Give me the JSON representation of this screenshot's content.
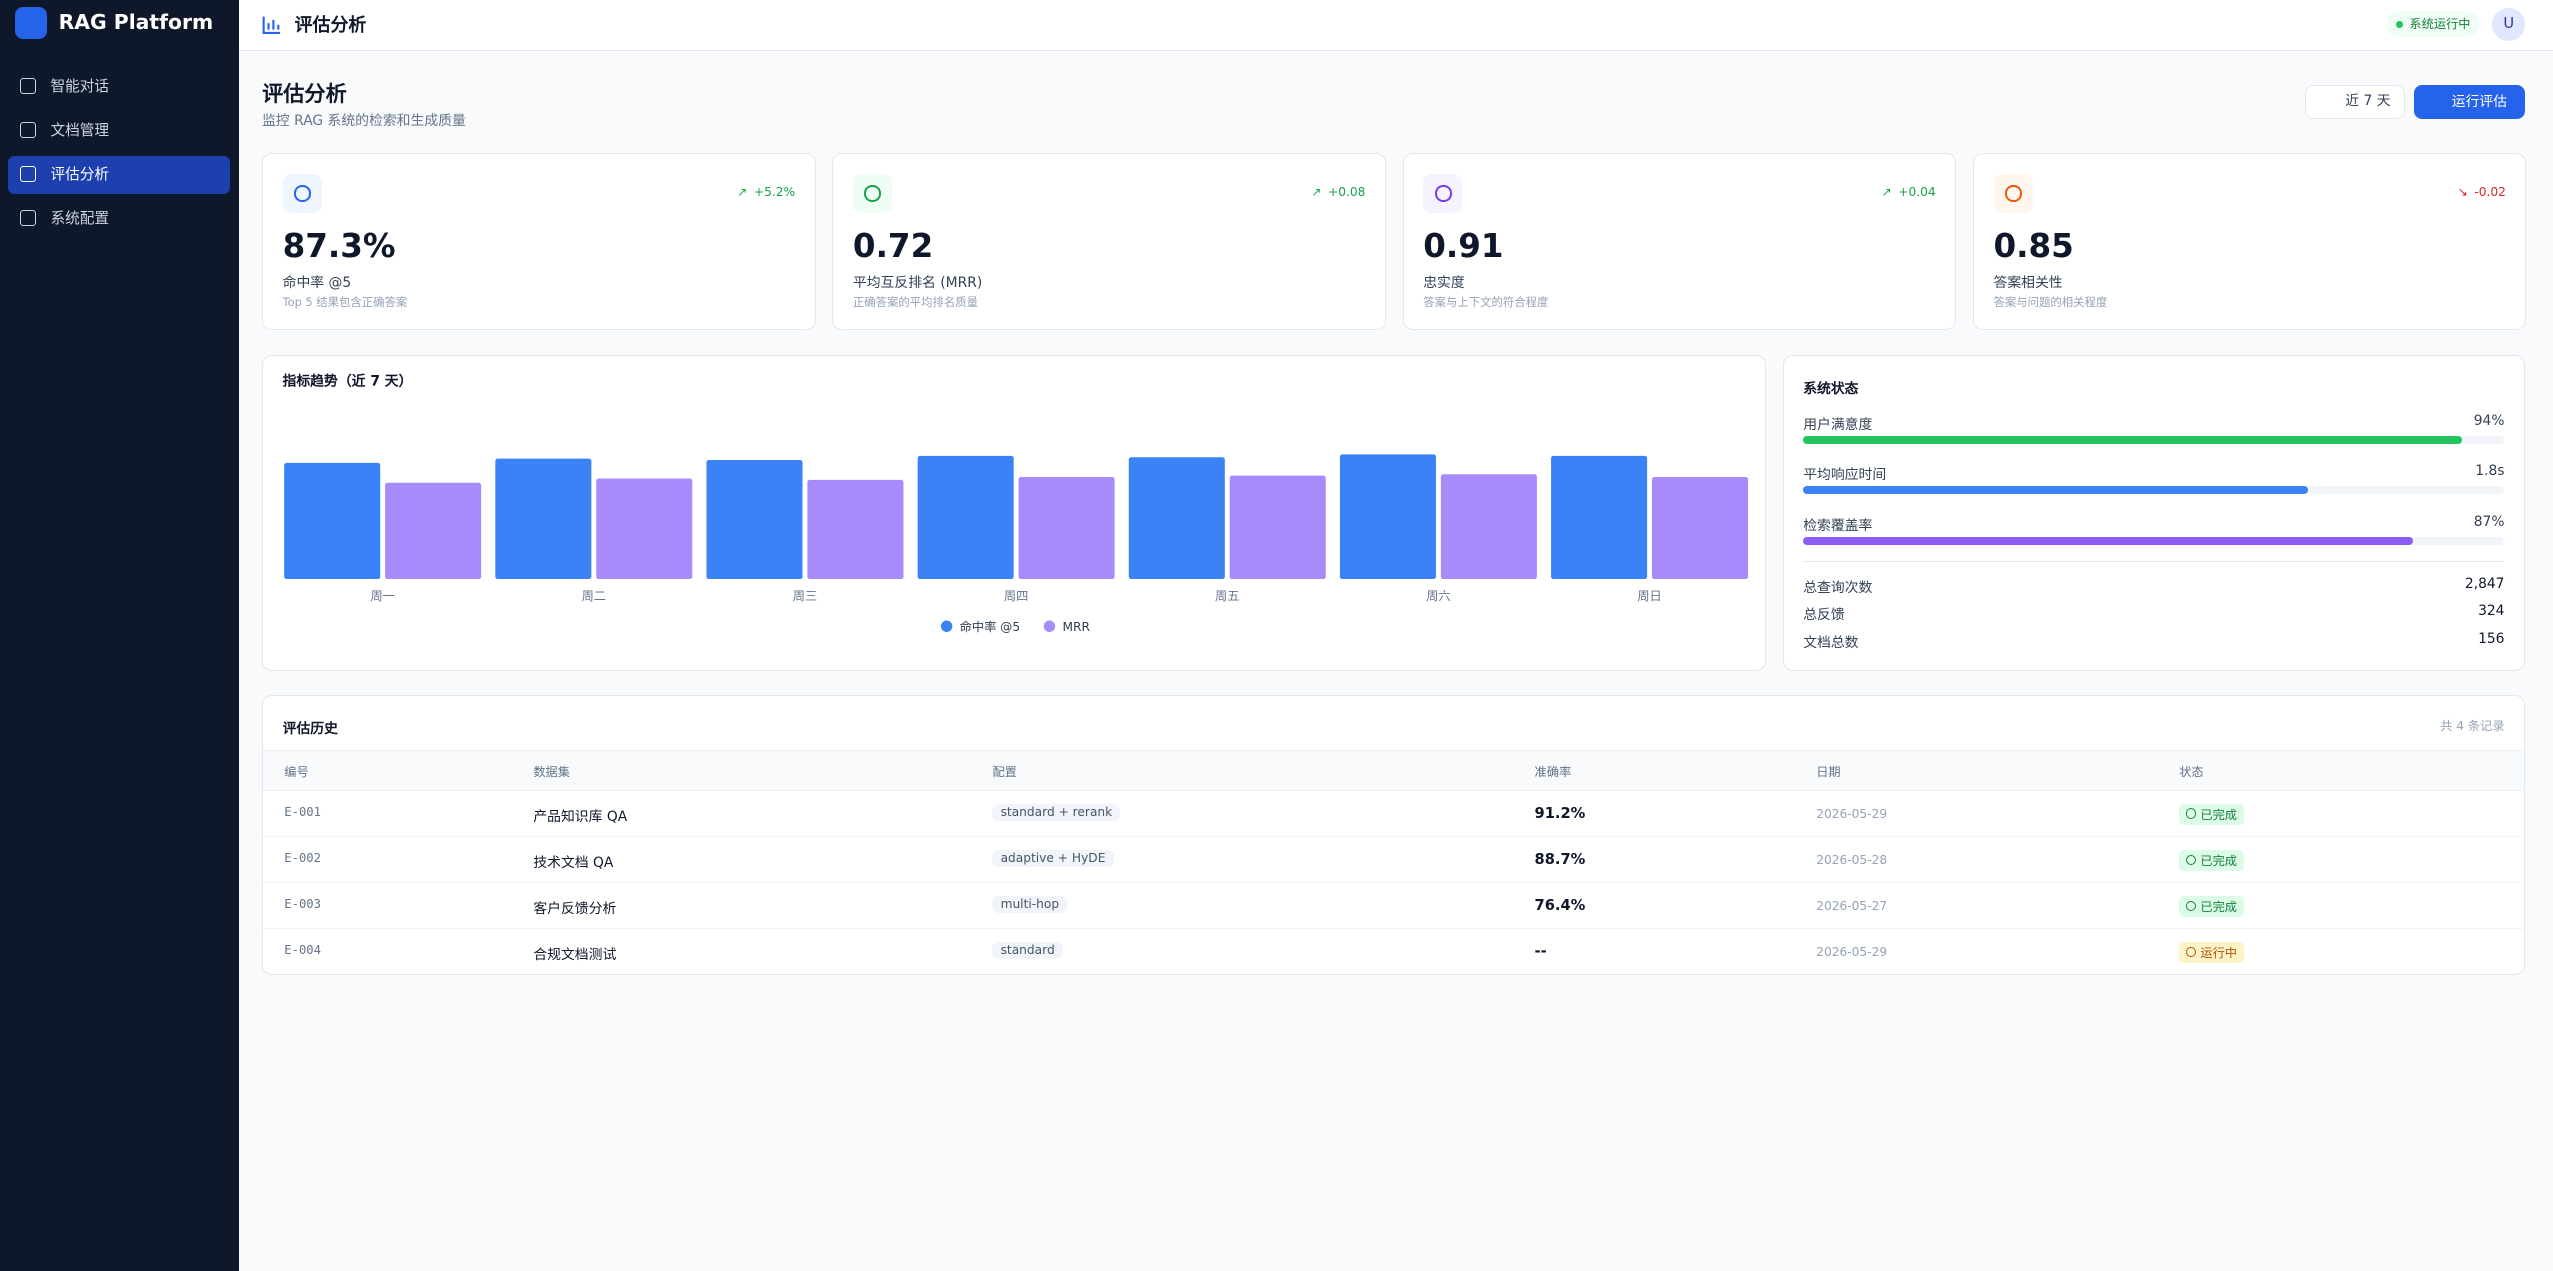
{
  "sidebar": {
    "brand": "RAG Platform",
    "nav": [
      "智能对话",
      "文档管理",
      "评估分析",
      "系统配置"
    ],
    "active": 2
  },
  "topbar": {
    "title": "评估分析",
    "status": "系统运行中",
    "avatar": "U"
  },
  "header": {
    "title": "评估分析",
    "subtitle": "监控 RAG 系统的检索和生成质量",
    "range_button": "近 7 天",
    "run_button": "运行评估"
  },
  "kpis": [
    {
      "value": "87.3%",
      "label": "命中率 @5",
      "desc": "Top 5 结果包含正确答案",
      "delta": "+5.2%",
      "trend": "up"
    },
    {
      "value": "0.72",
      "label": "平均互反排名 (MRR)",
      "desc": "正确答案的平均排名质量",
      "delta": "+0.08",
      "trend": "up"
    },
    {
      "value": "0.91",
      "label": "忠实度",
      "desc": "答案与上下文的符合程度",
      "delta": "+0.04",
      "trend": "up"
    },
    {
      "value": "0.85",
      "label": "答案相关性",
      "desc": "答案与问题的相关程度",
      "delta": "-0.02",
      "trend": "down"
    }
  ],
  "chart_data": {
    "type": "bar",
    "title": "指标趋势（近 7 天）",
    "categories": [
      "周一",
      "周二",
      "周三",
      "周四",
      "周五",
      "周六",
      "周日"
    ],
    "series": [
      {
        "name": "命中率 @5",
        "color": "#3b82f6",
        "values": [
          0.82,
          0.85,
          0.84,
          0.87,
          0.86,
          0.88,
          0.87
        ]
      },
      {
        "name": "MRR",
        "color": "#a78bfa",
        "values": [
          0.68,
          0.71,
          0.7,
          0.72,
          0.73,
          0.74,
          0.72
        ]
      }
    ],
    "ylim": [
      0,
      1
    ],
    "legend": "bottom"
  },
  "system_status": {
    "title": "系统状态",
    "bars": [
      {
        "label": "用户满意度",
        "value": 94,
        "value_label": "94%",
        "lim": [
          0,
          100
        ],
        "color": "#22c55e"
      },
      {
        "label": "平均响应时间",
        "value": 1.8,
        "value_label": "1.8s",
        "lim": [
          0,
          2.5
        ],
        "color": "#3b82f6"
      },
      {
        "label": "检索覆盖率",
        "value": 87,
        "value_label": "87%",
        "lim": [
          0,
          100
        ],
        "color": "#8b5cf6"
      }
    ],
    "stats": [
      {
        "label": "总查询次数",
        "value": "2,847"
      },
      {
        "label": "总反馈",
        "value": "324"
      },
      {
        "label": "文档总数",
        "value": "156"
      }
    ]
  },
  "history": {
    "title": "评估历史",
    "count": "共 4 条记录",
    "columns": [
      "编号",
      "数据集",
      "配置",
      "准确率",
      "日期",
      "状态"
    ],
    "rows": [
      {
        "id": "E-001",
        "dataset": "产品知识库 QA",
        "config": "standard + rerank",
        "accuracy": "91.2%",
        "date": "2026-05-29",
        "status": "已完成",
        "kind": "done"
      },
      {
        "id": "E-002",
        "dataset": "技术文档 QA",
        "config": "adaptive + HyDE",
        "accuracy": "88.7%",
        "date": "2026-05-28",
        "status": "已完成",
        "kind": "done"
      },
      {
        "id": "E-003",
        "dataset": "客户反馈分析",
        "config": "multi-hop",
        "accuracy": "76.4%",
        "date": "2026-05-27",
        "status": "已完成",
        "kind": "done"
      },
      {
        "id": "E-004",
        "dataset": "合规文档测试",
        "config": "standard",
        "accuracy": "--",
        "date": "2026-05-29",
        "status": "运行中",
        "kind": "running"
      }
    ]
  }
}
